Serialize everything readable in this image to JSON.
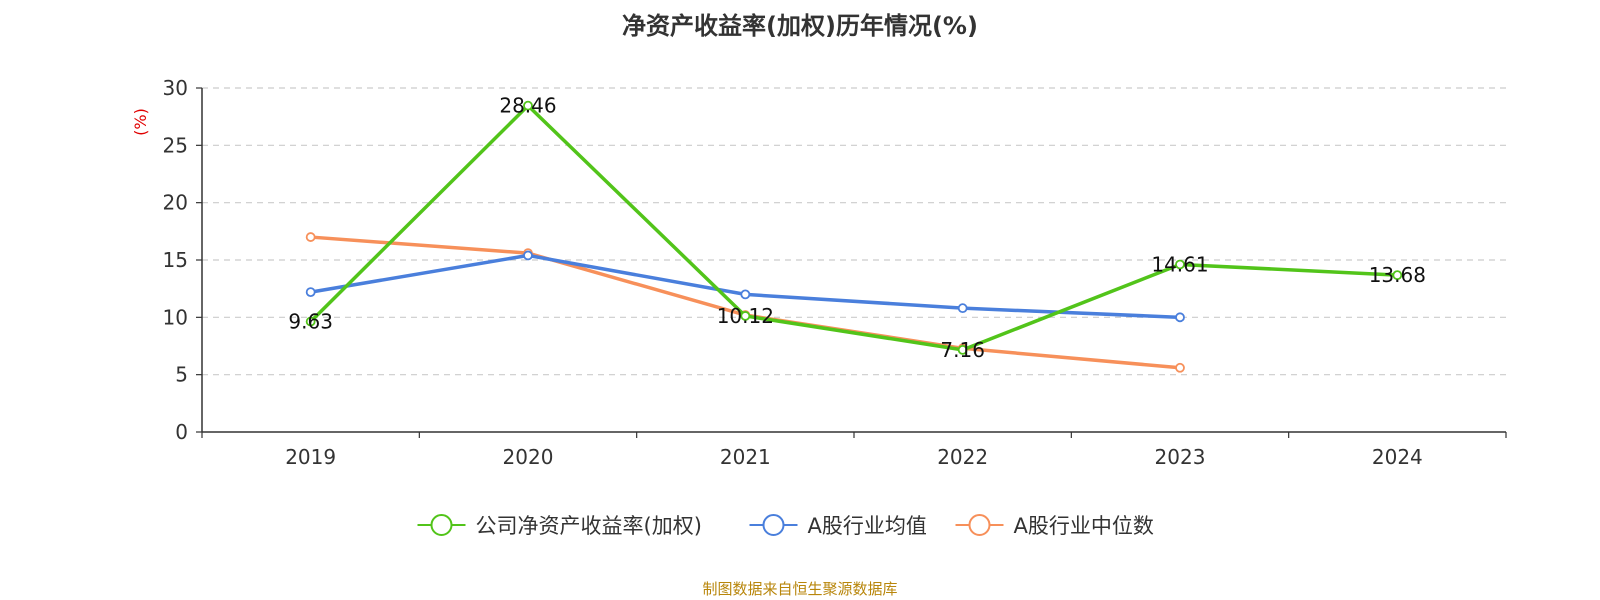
{
  "title": "净资产收益率(加权)历年情况(%)",
  "footer": "制图数据来自恒生聚源数据库",
  "chart_data": {
    "type": "line",
    "title": "净资产收益率(加权)历年情况(%)",
    "ylabel": "(%)",
    "xlabel": "",
    "categories": [
      "2019",
      "2020",
      "2021",
      "2022",
      "2023",
      "2024"
    ],
    "ylim": [
      0,
      30
    ],
    "yticks": [
      0,
      5,
      10,
      15,
      20,
      25,
      30
    ],
    "grid": true,
    "legend_position": "bottom",
    "series": [
      {
        "name": "公司净资产收益率(加权)",
        "color": "#52c41a",
        "values": [
          9.63,
          28.46,
          10.12,
          7.16,
          14.61,
          13.68
        ],
        "labels": [
          "9.63",
          "28.46",
          "10.12",
          "7.16",
          "14.61",
          "13.68"
        ]
      },
      {
        "name": "A股行业均值",
        "color": "#4a7fdc",
        "values": [
          12.2,
          15.4,
          12.0,
          10.8,
          10.0,
          null
        ]
      },
      {
        "name": "A股行业中位数",
        "color": "#f7905a",
        "values": [
          17.0,
          15.6,
          10.2,
          7.3,
          5.6,
          null
        ]
      }
    ]
  }
}
